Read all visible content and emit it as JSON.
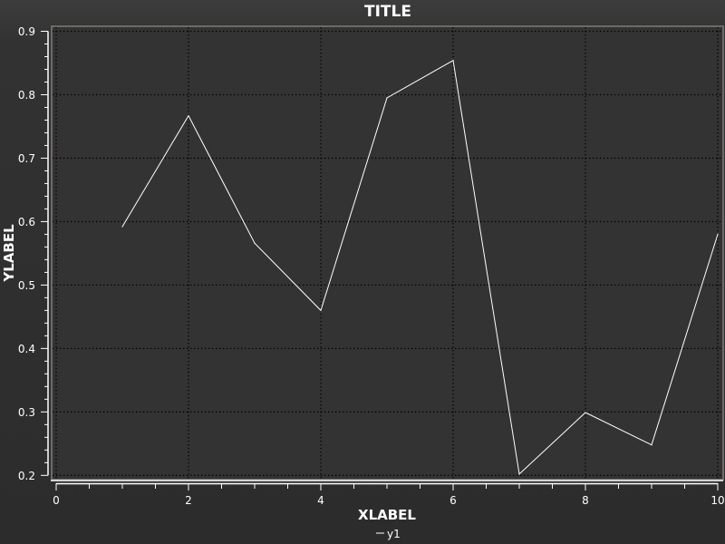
{
  "chart_data": {
    "type": "line",
    "title": "TITLE",
    "xlabel": "XLABEL",
    "ylabel": "YLABEL",
    "xlim": [
      0,
      10
    ],
    "ylim": [
      0.2,
      0.9
    ],
    "xticks": [
      0,
      2,
      4,
      6,
      8,
      10
    ],
    "xtick_labels": [
      "0",
      "2",
      "4",
      "6",
      "8",
      "10"
    ],
    "yticks": [
      0.2,
      0.3,
      0.4,
      0.5,
      0.6,
      0.7,
      0.8,
      0.9
    ],
    "ytick_labels": [
      "0.2",
      "0.3",
      "0.4",
      "0.5",
      "0.6",
      "0.7",
      "0.8",
      "0.9"
    ],
    "grid": true,
    "legend_position": "bottom-center",
    "x": [
      1,
      2,
      3,
      4,
      5,
      6,
      7,
      8,
      9,
      10
    ],
    "series": [
      {
        "name": "y1",
        "values": [
          0.592,
          0.767,
          0.566,
          0.46,
          0.795,
          0.854,
          0.202,
          0.299,
          0.248,
          0.58
        ],
        "color": "#ffffff"
      }
    ],
    "legend": [
      "y1"
    ],
    "colors": {
      "background": "#2e2e2e",
      "plot_background": "#333333",
      "axis": "#ffffff",
      "grid": "#000000",
      "text": "#ffffff"
    }
  }
}
